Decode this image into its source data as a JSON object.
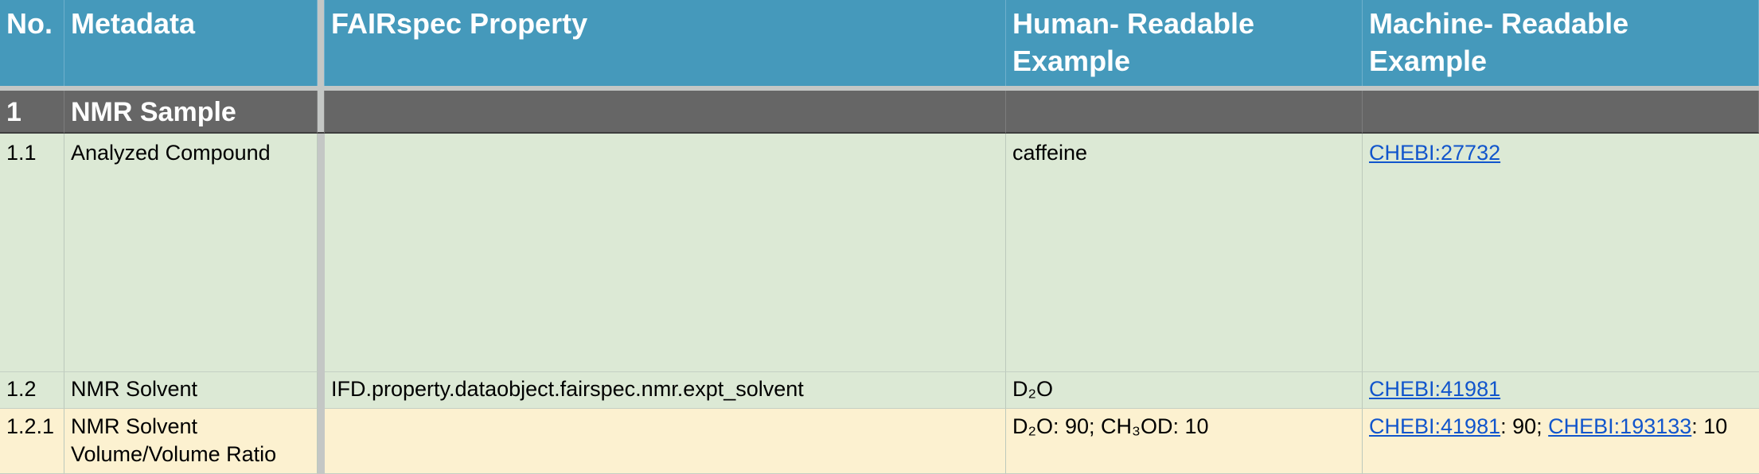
{
  "header": {
    "no": "No.",
    "metadata": "Metadata",
    "property": "FAIRspec Property",
    "human": "Human- Readable Example",
    "machine": "Machine- Readable Example"
  },
  "section": {
    "no": "1",
    "title": "NMR Sample"
  },
  "rows": [
    {
      "no": "1.1",
      "metadata": "Analyzed Compound",
      "property": "",
      "human": "caffeine",
      "machine_link": "CHEBI:27732"
    },
    {
      "no": "1.2",
      "metadata": "NMR Solvent",
      "property": "IFD.property.dataobject.fairspec.nmr.expt_solvent",
      "human": "D₂O",
      "machine_link": "CHEBI:41981"
    },
    {
      "no": "1.2.1",
      "metadata": "NMR Solvent Volume/Volume Ratio",
      "property": "",
      "human": "D₂O: 90; CH₃OD: 10",
      "machine_link_1": "CHEBI:41981",
      "machine_sep_1": ": 90; ",
      "machine_link_2": "CHEBI:193133",
      "machine_sep_2": ": 10"
    }
  ],
  "colors": {
    "header_bg": "#4599bb",
    "section_bg": "#666666",
    "green_row_bg": "#dce9d5",
    "yellow_row_bg": "#fcf1d0",
    "link": "#1155cc"
  }
}
